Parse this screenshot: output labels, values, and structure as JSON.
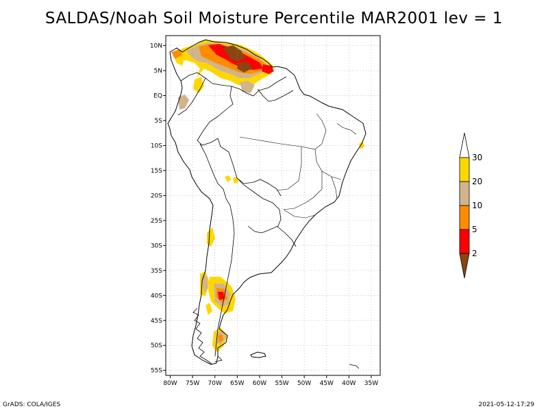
{
  "title": "SALDAS/Noah Soil Moisture Percentile MAR2001 lev = 1",
  "footer_left": "GrADS: COLA/IGES",
  "footer_right": "2021-05-12-17:29",
  "chart_data": {
    "type": "heatmap",
    "lon_range": [
      -81,
      -33
    ],
    "lat_range": [
      -56,
      12
    ],
    "x_ticks": [
      -80,
      -75,
      -70,
      -65,
      -60,
      -55,
      -50,
      -45,
      -40,
      -35
    ],
    "x_tick_labels": [
      "80W",
      "75W",
      "70W",
      "65W",
      "60W",
      "55W",
      "50W",
      "45W",
      "40W",
      "35W"
    ],
    "y_ticks": [
      10,
      5,
      0,
      -5,
      -10,
      -15,
      -20,
      -25,
      -30,
      -35,
      -40,
      -45,
      -50,
      -55
    ],
    "y_tick_labels": [
      "10N",
      "5N",
      "EQ",
      "5S",
      "10S",
      "15S",
      "20S",
      "25S",
      "30S",
      "35S",
      "40S",
      "45S",
      "50S",
      "55S"
    ],
    "grid": true,
    "colorbar": {
      "placement": "right",
      "levels": [
        "2",
        "5",
        "10",
        "20",
        "30"
      ],
      "colors": [
        "#8b4513",
        "#ff0000",
        "#ff8c00",
        "#d2b48c",
        "#ffd700",
        "#ffffff"
      ]
    }
  }
}
